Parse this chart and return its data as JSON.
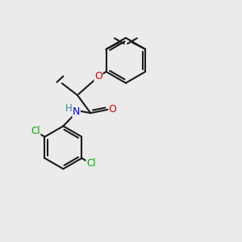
{
  "background_color": "#ebebeb",
  "bond_color": "#1a1a1a",
  "bond_width": 1.5,
  "atom_colors": {
    "O": "#cc0000",
    "N": "#0000dd",
    "Cl": "#00aa00",
    "H": "#448888",
    "C": "#1a1a1a"
  },
  "font_size": 8.5,
  "figsize": [
    3.0,
    3.0
  ],
  "dpi": 100
}
